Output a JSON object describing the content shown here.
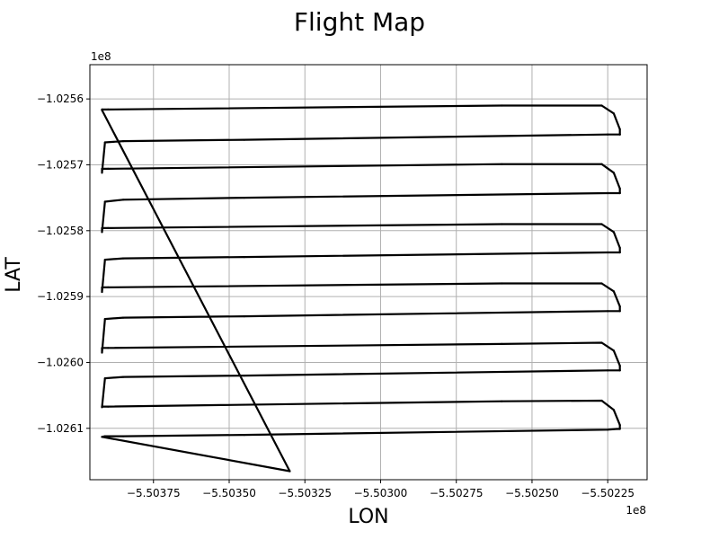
{
  "chart_data": {
    "type": "line",
    "title": "Flight Map",
    "xlabel": "LON",
    "ylabel": "LAT",
    "x_offset_label": "1e8",
    "y_offset_label": "1e8",
    "xlim": [
      -550396,
      -550212
    ],
    "ylim": [
      -102617.8,
      -102554.8
    ],
    "grid": true,
    "xticks": [
      {
        "value": -550375,
        "label": "−5.50375"
      },
      {
        "value": -550350,
        "label": "−5.50350"
      },
      {
        "value": -550325,
        "label": "−5.50325"
      },
      {
        "value": -550300,
        "label": "−5.50300"
      },
      {
        "value": -550275,
        "label": "−5.50275"
      },
      {
        "value": -550250,
        "label": "−5.50250"
      },
      {
        "value": -550225,
        "label": "−5.50225"
      }
    ],
    "yticks": [
      {
        "value": -102560,
        "label": "−1.0256"
      },
      {
        "value": -102570,
        "label": "−1.0257"
      },
      {
        "value": -102580,
        "label": "−1.0258"
      },
      {
        "value": -102590,
        "label": "−1.0259"
      },
      {
        "value": -102600,
        "label": "−1.0260"
      },
      {
        "value": -102610,
        "label": "−1.0261"
      }
    ],
    "series": [
      {
        "color": "#000000",
        "x": [
          -550330,
          -550392,
          -550392,
          -550391,
          -550385,
          -550345,
          -550225,
          -550222,
          -550221,
          -550221,
          -550223,
          -550227,
          -550260,
          -550390,
          -550392,
          -550392,
          -550391,
          -550385,
          -550345,
          -550225,
          -550221,
          -550221,
          -550221,
          -550223,
          -550227,
          -550260,
          -550390,
          -550392,
          -550392,
          -550391,
          -550385,
          -550345,
          -550225,
          -550221,
          -550221,
          -550221,
          -550223,
          -550227,
          -550260,
          -550390,
          -550392,
          -550392,
          -550391,
          -550385,
          -550345,
          -550225,
          -550221,
          -550221,
          -550221,
          -550223,
          -550227,
          -550260,
          -550390,
          -550392,
          -550392,
          -550391,
          -550385,
          -550345,
          -550225,
          -550221,
          -550221,
          -550221,
          -550223,
          -550227,
          -550260,
          -550390,
          -550392,
          -550392,
          -550391,
          -550385,
          -550345,
          -550225,
          -550221,
          -550221,
          -550221,
          -550223,
          -550227,
          -550260,
          -550390,
          -550392,
          -550392,
          -550330
        ],
        "y": [
          -102616.5,
          -102611.3,
          -102611.3,
          -102611.2,
          -102611.2,
          -102611.0,
          -102610.2,
          -102610.1,
          -102610.1,
          -102609.5,
          -102607.2,
          -102605.8,
          -102605.9,
          -102606.7,
          -102606.7,
          -102606.8,
          -102602.4,
          -102602.2,
          -102602.0,
          -102601.2,
          -102601.2,
          -102601.2,
          -102600.5,
          -102598.2,
          -102597.0,
          -102597.2,
          -102597.8,
          -102597.8,
          -102598.5,
          -102593.4,
          -102593.2,
          -102593.0,
          -102592.2,
          -102592.2,
          -102592.2,
          -102591.5,
          -102589.2,
          -102588.0,
          -102588.0,
          -102588.6,
          -102588.6,
          -102589.3,
          -102584.4,
          -102584.2,
          -102584.0,
          -102583.3,
          -102583.3,
          -102583.3,
          -102582.6,
          -102580.2,
          -102579.0,
          -102579.0,
          -102579.6,
          -102579.6,
          -102580.2,
          -102575.6,
          -102575.3,
          -102575.0,
          -102574.3,
          -102574.3,
          -102574.3,
          -102573.6,
          -102571.2,
          -102569.9,
          -102569.9,
          -102570.6,
          -102570.6,
          -102571.2,
          -102566.6,
          -102566.4,
          -102566.2,
          -102565.4,
          -102565.4,
          -102565.4,
          -102564.6,
          -102562.2,
          -102561.0,
          -102561.0,
          -102561.6,
          -102561.6,
          -102561.7,
          -102616.5
        ]
      }
    ]
  }
}
